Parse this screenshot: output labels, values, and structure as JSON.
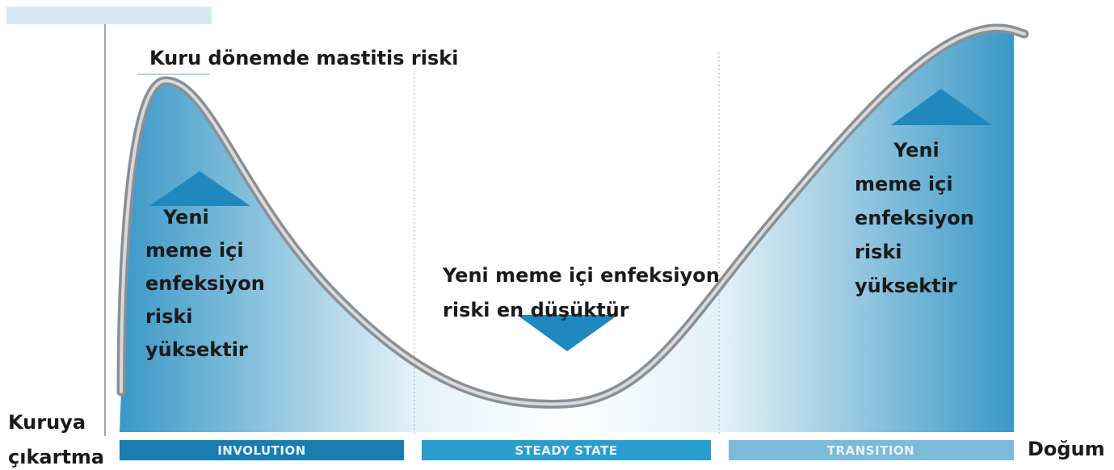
{
  "title": "Kuru dönemde mastitis riski",
  "start_label": [
    "Kuruya",
    "çıkartma"
  ],
  "end_label": "Doğum",
  "phases": [
    "INVOLUTION",
    "STEADY STATE",
    "TRANSITION"
  ],
  "notes": [
    {
      "lines": [
        "Yeni",
        "meme içi",
        "enfeksiyon",
        "riski",
        "yüksektir"
      ]
    },
    {
      "lines": [
        "Yeni meme içi enfeksiyon",
        "riski en düşüktür"
      ]
    },
    {
      "lines": [
        "Yeni",
        "meme içi",
        "enfeksiyon",
        "riski",
        "yüksektir"
      ]
    }
  ]
}
